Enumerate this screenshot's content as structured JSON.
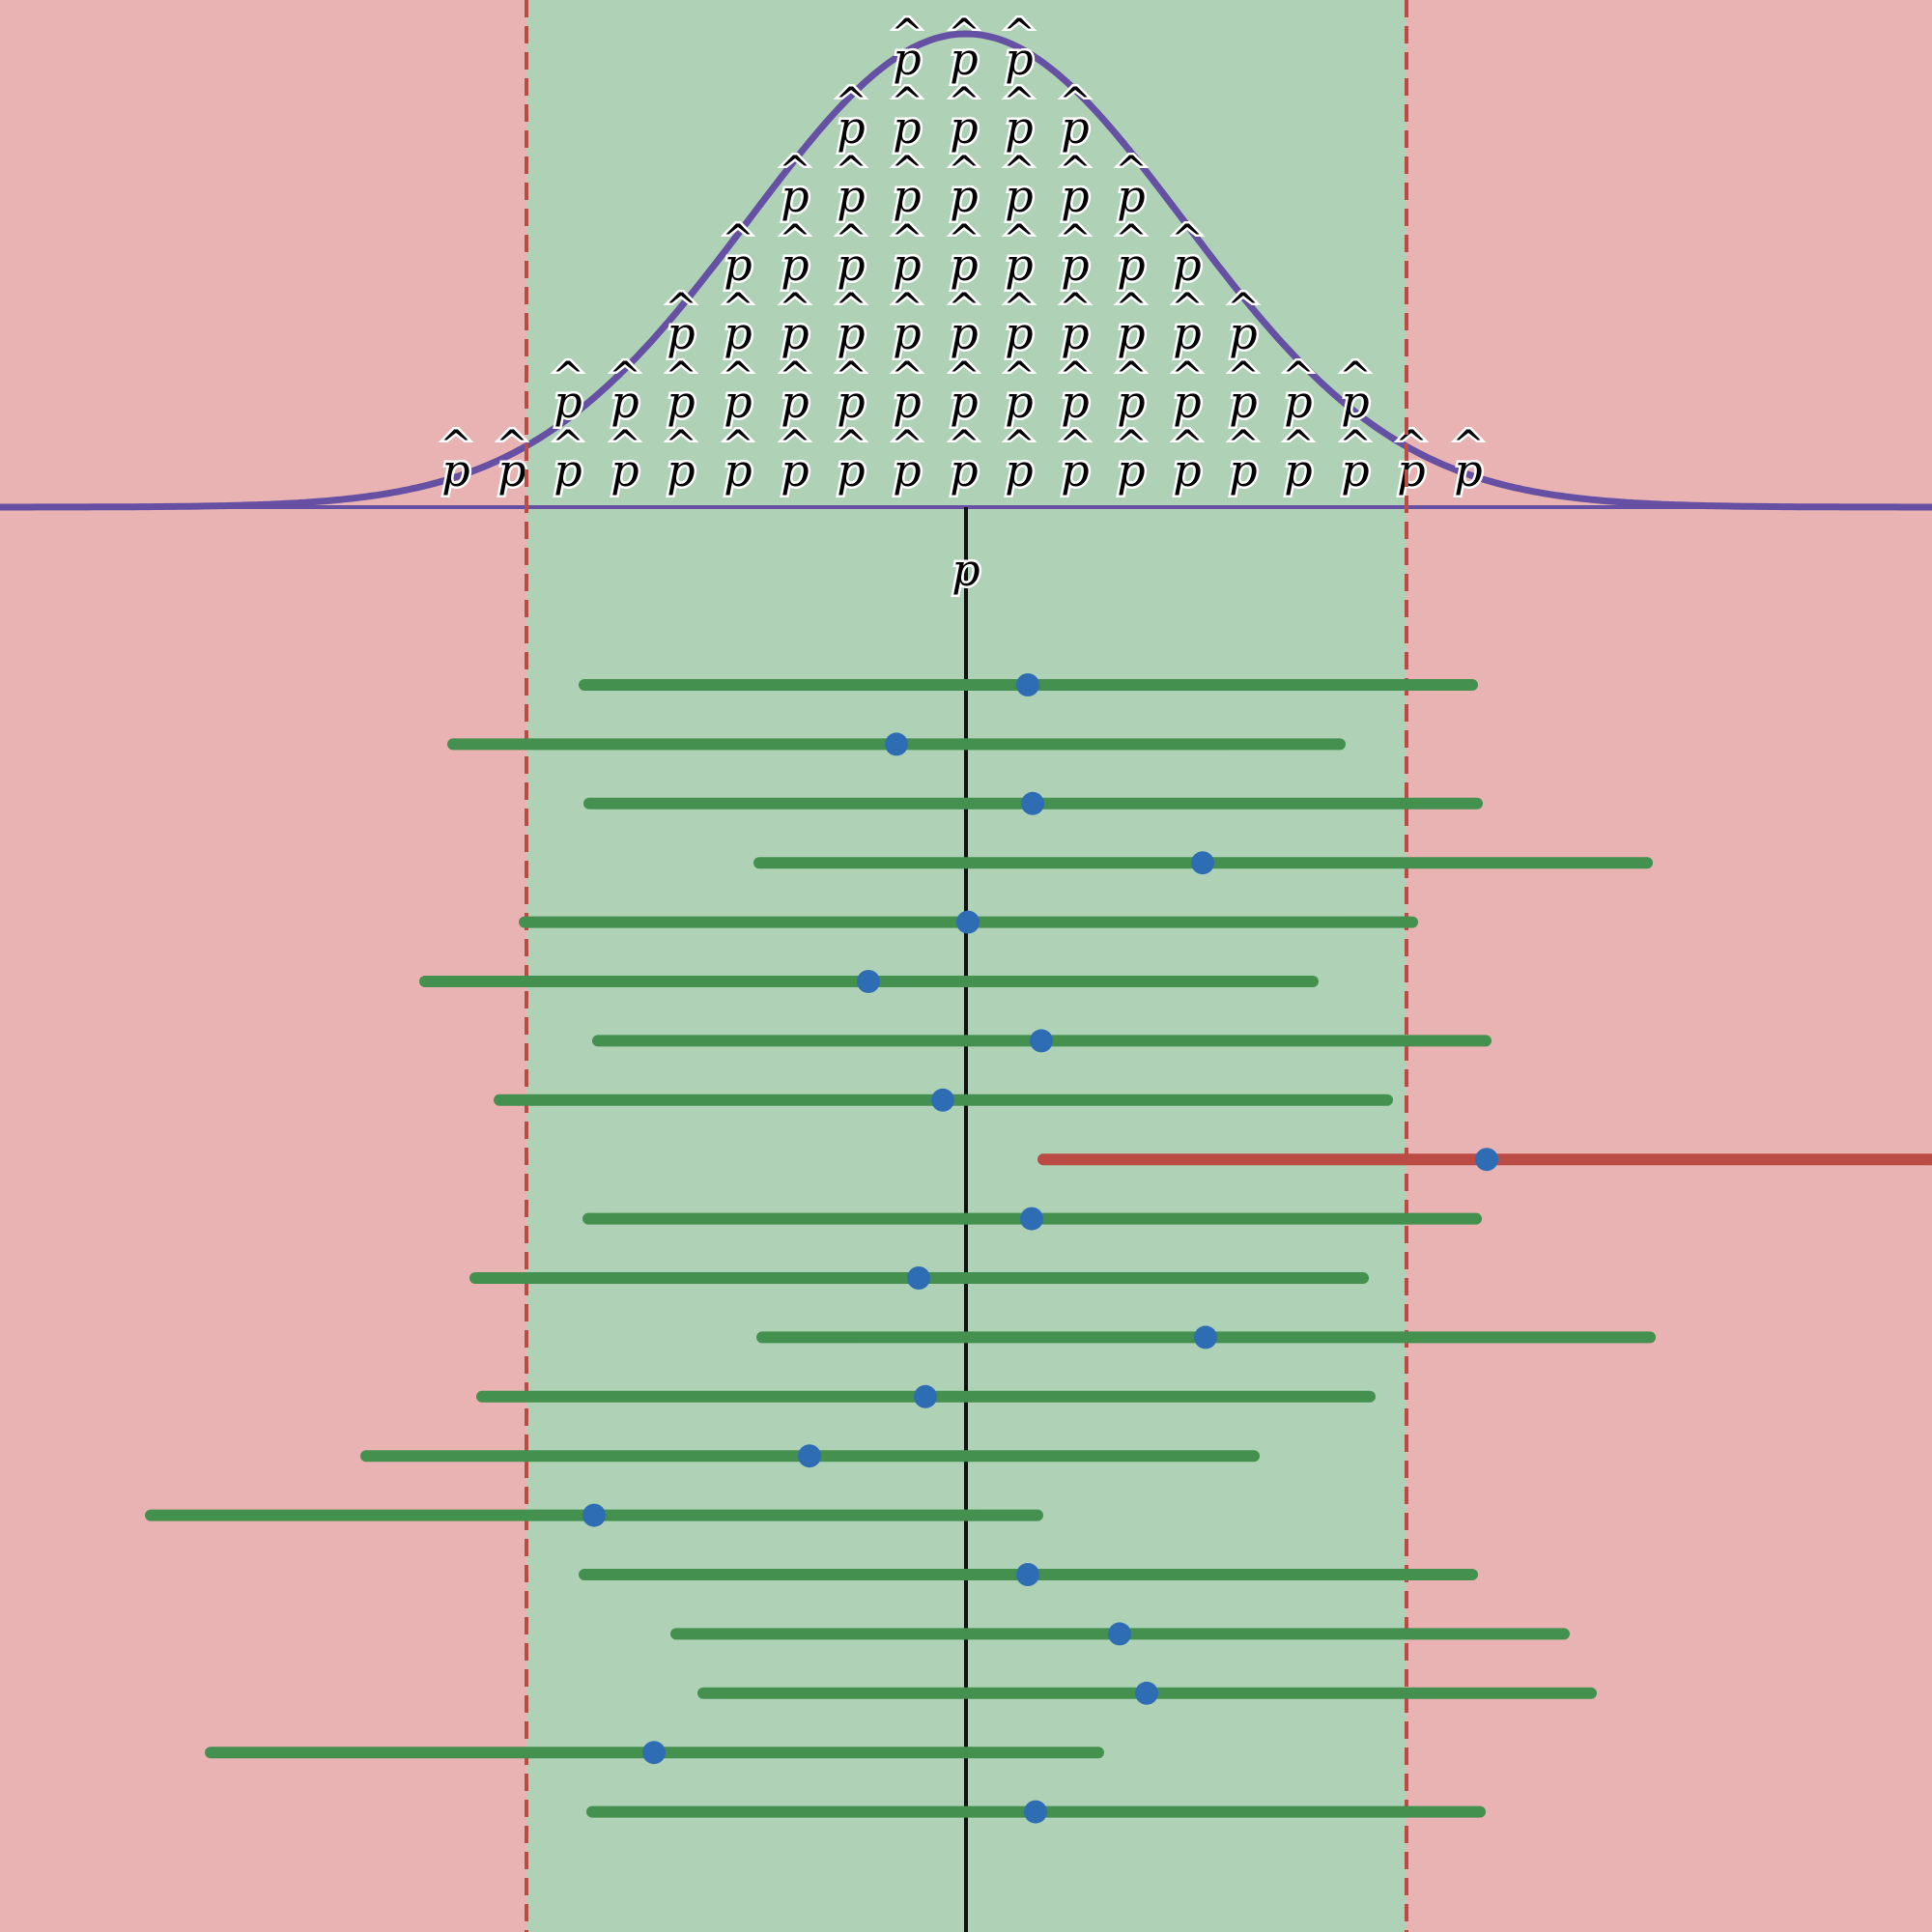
{
  "chart_data": {
    "type": "diagram",
    "title": "",
    "x_range": [
      0,
      2000
    ],
    "true_parameter": {
      "label": "p",
      "value": 1000
    },
    "region_bounds": [
      545,
      1456
    ],
    "normal_curve": {
      "mean": 1000,
      "sd": 225
    },
    "sample_estimate_label": "p",
    "sample_estimate_hat": "^",
    "dot_stack": {
      "x_positions": [
        472,
        530,
        588,
        647,
        705,
        764,
        823,
        881,
        939,
        998,
        1055,
        1113,
        1171,
        1229,
        1287,
        1344,
        1403,
        1461,
        1520
      ],
      "counts": [
        1,
        1,
        2,
        2,
        3,
        4,
        5,
        6,
        7,
        7,
        7,
        6,
        5,
        4,
        3,
        2,
        2,
        1,
        1
      ]
    },
    "intervals": [
      {
        "estimate": 1064,
        "low": 605,
        "high": 1524,
        "captures": true
      },
      {
        "estimate": 928,
        "low": 469,
        "high": 1387,
        "captures": true
      },
      {
        "estimate": 1069,
        "low": 610,
        "high": 1529,
        "captures": true
      },
      {
        "estimate": 1245,
        "low": 786,
        "high": 1705,
        "captures": true
      },
      {
        "estimate": 1002,
        "low": 543,
        "high": 1462,
        "captures": true
      },
      {
        "estimate": 899,
        "low": 440,
        "high": 1359,
        "captures": true
      },
      {
        "estimate": 1078,
        "low": 619,
        "high": 1538,
        "captures": true
      },
      {
        "estimate": 976,
        "low": 517,
        "high": 1436,
        "captures": true
      },
      {
        "estimate": 1539,
        "low": 1080,
        "high": 2000,
        "captures": false
      },
      {
        "estimate": 1068,
        "low": 609,
        "high": 1528,
        "captures": true
      },
      {
        "estimate": 951,
        "low": 492,
        "high": 1411,
        "captures": true
      },
      {
        "estimate": 1248,
        "low": 789,
        "high": 1708,
        "captures": true
      },
      {
        "estimate": 958,
        "low": 499,
        "high": 1418,
        "captures": true
      },
      {
        "estimate": 838,
        "low": 379,
        "high": 1298,
        "captures": true
      },
      {
        "estimate": 615,
        "low": 156,
        "high": 1074,
        "captures": true
      },
      {
        "estimate": 1064,
        "low": 605,
        "high": 1524,
        "captures": true
      },
      {
        "estimate": 1159,
        "low": 700,
        "high": 1619,
        "captures": true
      },
      {
        "estimate": 1187,
        "low": 728,
        "high": 1647,
        "captures": true
      },
      {
        "estimate": 677,
        "low": 218,
        "high": 1137,
        "captures": true
      },
      {
        "estimate": 1072,
        "low": 613,
        "high": 1532,
        "captures": true
      }
    ],
    "colors": {
      "outside_region": "#eab3b3",
      "inside_region": "#afd2b7",
      "boundary_line": "#bb4b45",
      "curve": "#6650a4",
      "capture_interval": "#43904f",
      "miss_interval": "#bb4b45",
      "estimate_dot": "#2e6db4",
      "parameter_line": "#111111"
    }
  }
}
